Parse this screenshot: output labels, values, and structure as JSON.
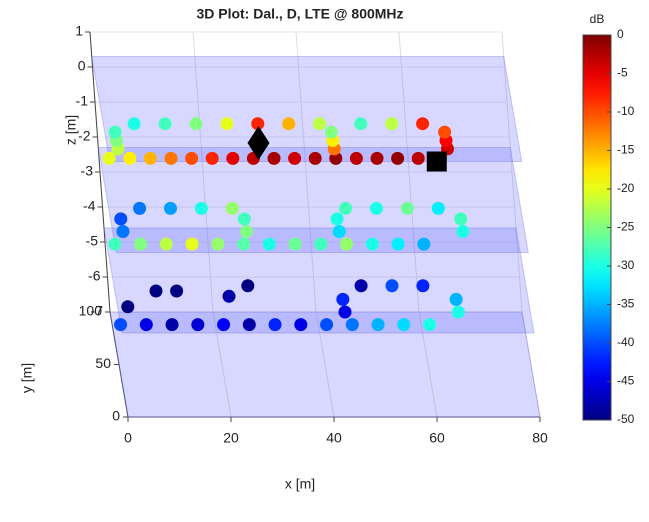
{
  "chart_data": {
    "type": "scatter3d",
    "title": "3D Plot: Dal., D, LTE @ 800MHz",
    "xlabel": "x [m]",
    "ylabel": "y [m]",
    "zlabel": "z [m]",
    "xlim": [
      0,
      80
    ],
    "ylim": [
      0,
      100
    ],
    "zlim": [
      -7,
      1
    ],
    "xticks": [
      0,
      20,
      40,
      60,
      80
    ],
    "yticks": [
      0,
      50,
      100
    ],
    "zticks": [
      -7,
      -6,
      -5,
      -4,
      -3,
      -2,
      -1,
      0,
      1
    ],
    "grid": true,
    "planes_z": [
      0.3,
      -2.3,
      -4.6,
      -7
    ],
    "colorbar": {
      "label": "dB",
      "clim": [
        -50,
        0
      ],
      "ticks": [
        -50,
        -45,
        -40,
        -35,
        -30,
        -25,
        -20,
        -15,
        -10,
        -5,
        0
      ],
      "colormap": "jet"
    },
    "series": [
      {
        "x": [
          0,
          4,
          8,
          12,
          16,
          20,
          24,
          28,
          32,
          36,
          40,
          44,
          48,
          52,
          56,
          60,
          64,
          2,
          2,
          2,
          6,
          12,
          18,
          24,
          30,
          36,
          42,
          44,
          44,
          44,
          50,
          56,
          62,
          66,
          66,
          66
        ],
        "y": [
          3,
          3,
          3,
          3,
          3,
          3,
          3,
          3,
          3,
          3,
          3,
          3,
          3,
          3,
          3,
          3,
          3,
          12,
          20,
          28,
          36,
          36,
          36,
          36,
          36,
          36,
          36,
          12,
          20,
          28,
          36,
          36,
          36,
          12,
          20,
          28
        ],
        "z": [
          0.3,
          0.3,
          0.3,
          0.3,
          0.3,
          0.3,
          0.3,
          0.3,
          0.3,
          0.3,
          0.3,
          0.3,
          0.3,
          0.3,
          0.3,
          0.3,
          0.3,
          0.3,
          0.3,
          0.3,
          0.3,
          0.3,
          0.3,
          0.3,
          0.3,
          0.3,
          0.3,
          0.3,
          0.3,
          0.3,
          0.3,
          0.3,
          0.3,
          0.3,
          0.3,
          0.3
        ],
        "values": [
          -20,
          -18,
          -15,
          -12,
          -10,
          -8,
          -5,
          -3,
          -2,
          -4,
          -2,
          -1,
          -3,
          -2,
          -1,
          -3,
          -6,
          -22,
          -25,
          -28,
          -30,
          -28,
          -25,
          -20,
          -8,
          -15,
          -22,
          -12,
          -18,
          -25,
          -28,
          -22,
          -8,
          -4,
          -6,
          -10
        ]
      },
      {
        "x": [
          0,
          5,
          10,
          15,
          20,
          25,
          30,
          35,
          40,
          45,
          50,
          55,
          60,
          2,
          2,
          6,
          12,
          18,
          24,
          26,
          26,
          46,
          52,
          58,
          64,
          68,
          68,
          44,
          44
        ],
        "y": [
          8,
          8,
          8,
          8,
          8,
          8,
          8,
          8,
          8,
          8,
          8,
          8,
          8,
          20,
          32,
          42,
          42,
          42,
          42,
          20,
          32,
          42,
          42,
          42,
          42,
          20,
          32,
          20,
          32
        ],
        "z": [
          -2.3,
          -2.3,
          -2.3,
          -2.3,
          -2.3,
          -2.3,
          -2.3,
          -2.3,
          -2.3,
          -2.3,
          -2.3,
          -2.3,
          -2.3,
          -2.3,
          -2.3,
          -2.3,
          -2.3,
          -2.3,
          -2.3,
          -2.3,
          -2.3,
          -2.3,
          -2.3,
          -2.3,
          -2.3,
          -2.3,
          -2.3,
          -2.3,
          -2.3
        ],
        "values": [
          -28,
          -25,
          -22,
          -20,
          -24,
          -27,
          -30,
          -26,
          -28,
          -24,
          -30,
          -32,
          -35,
          -38,
          -40,
          -38,
          -36,
          -30,
          -24,
          -25,
          -28,
          -28,
          -30,
          -26,
          -32,
          -30,
          -28,
          -33,
          -30
        ]
      },
      {
        "x": [
          0,
          5,
          10,
          15,
          20,
          25,
          30,
          35,
          40,
          45,
          50,
          55,
          60,
          2,
          8,
          12,
          22,
          26,
          44,
          44,
          48,
          54,
          60,
          66,
          66
        ],
        "y": [
          8,
          8,
          8,
          8,
          8,
          8,
          8,
          8,
          8,
          8,
          8,
          8,
          8,
          25,
          40,
          40,
          35,
          45,
          20,
          32,
          45,
          45,
          45,
          20,
          32
        ],
        "z": [
          -4.6,
          -4.6,
          -4.6,
          -4.6,
          -4.6,
          -4.6,
          -4.6,
          -4.6,
          -4.6,
          -4.6,
          -4.6,
          -4.6,
          -4.6,
          -4.6,
          -4.6,
          -4.6,
          -4.6,
          -4.6,
          -4.6,
          -4.6,
          -4.6,
          -4.6,
          -4.6,
          -4.6,
          -4.6
        ],
        "values": [
          -40,
          -45,
          -48,
          -46,
          -44,
          -48,
          -42,
          -45,
          -40,
          -38,
          -35,
          -33,
          -30,
          -50,
          -50,
          -50,
          -48,
          -50,
          -45,
          -42,
          -48,
          -40,
          -42,
          -30,
          -35
        ]
      }
    ],
    "markers": [
      {
        "shape": "diamond",
        "x": 29.5,
        "y": 17.6,
        "z": 0.3,
        "color": "#000000"
      },
      {
        "shape": "square",
        "x": 63.5,
        "y": 0,
        "z": 0.3,
        "color": "#000000"
      }
    ]
  }
}
